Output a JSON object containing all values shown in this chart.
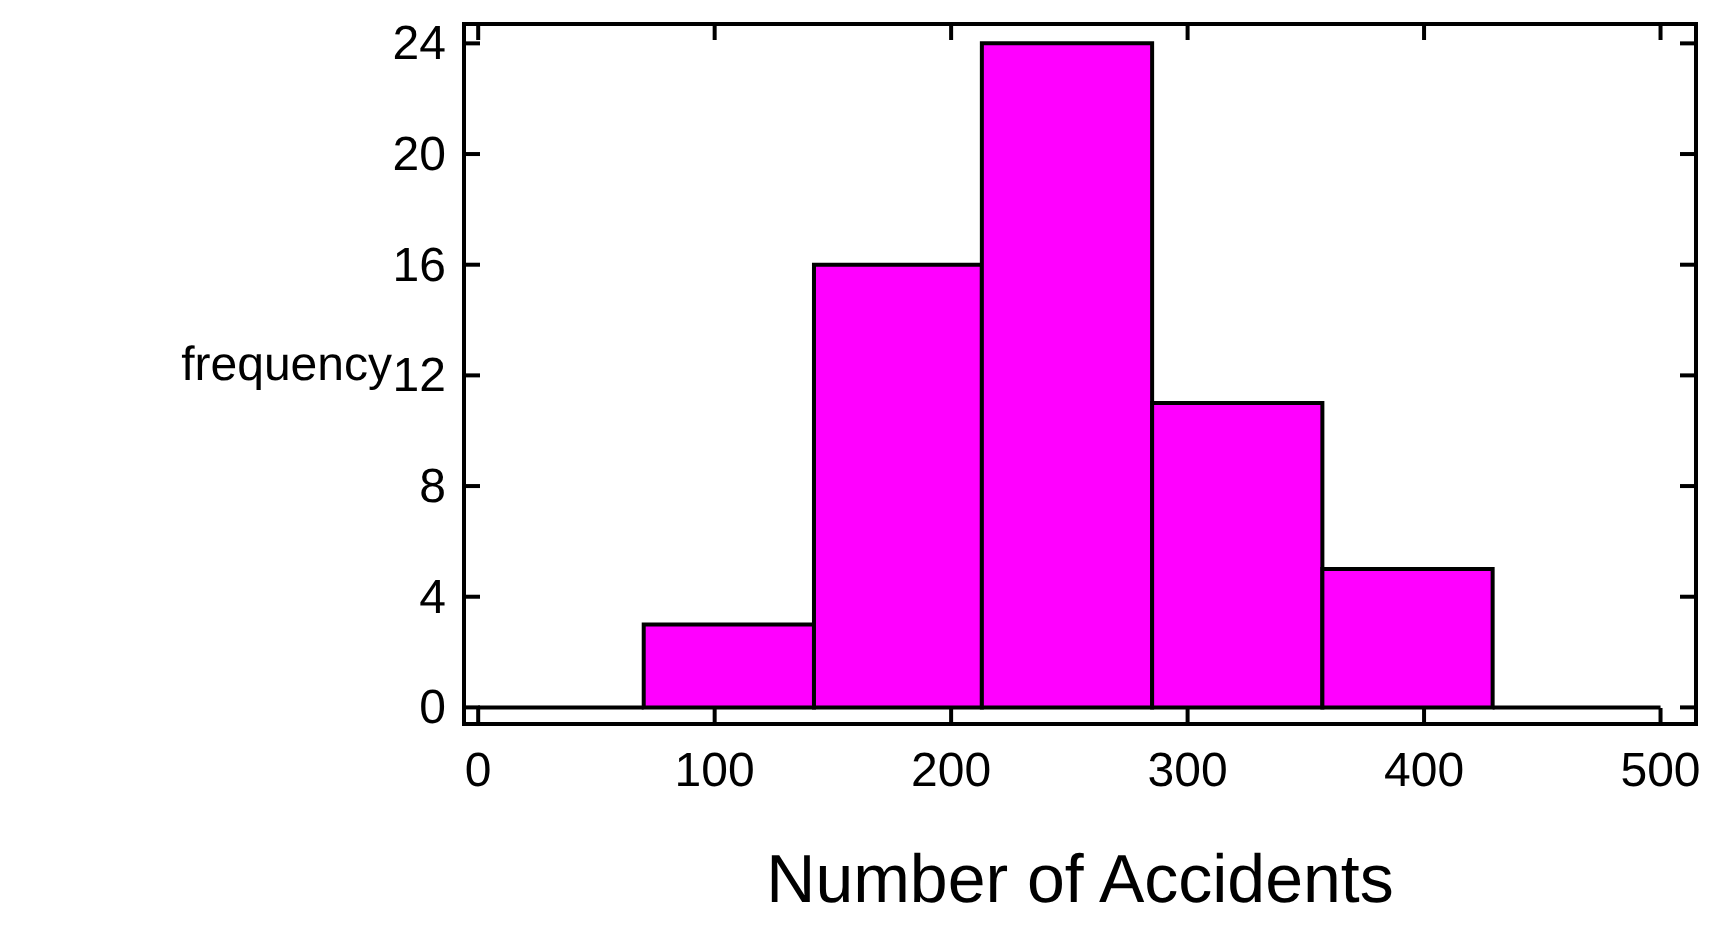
{
  "chart_data": {
    "type": "histogram",
    "xlabel": "Number of Accidents",
    "ylabel": "frequency",
    "bins": [
      0,
      70,
      142,
      213,
      285,
      357,
      429,
      500
    ],
    "values": [
      0,
      3,
      16,
      24,
      11,
      5,
      0
    ],
    "colors": [
      "#000000",
      "#ff00ff",
      "#ff00ff",
      "#ff00ff",
      "#ff00ff",
      "#ff00ff",
      "#000000"
    ],
    "xlim": [
      -6,
      515
    ],
    "ylim": [
      -0.6,
      24.7
    ],
    "xticks": [
      0,
      100,
      200,
      300,
      400,
      500
    ],
    "yticks": [
      0,
      4,
      8,
      12,
      16,
      20,
      24
    ],
    "grid": false
  }
}
